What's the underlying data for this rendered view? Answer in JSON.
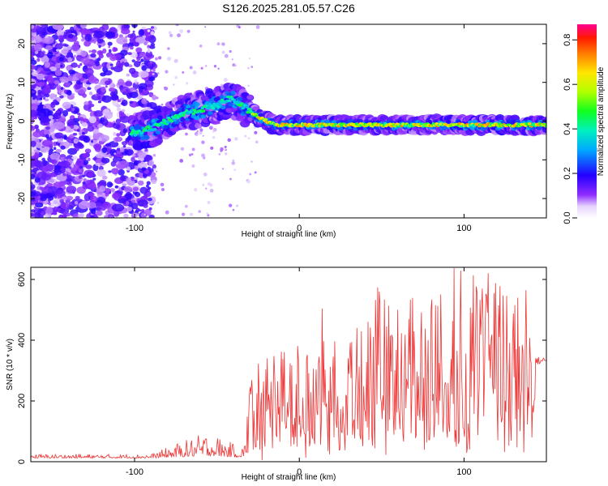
{
  "chart_data": [
    {
      "type": "heatmap",
      "title": "S126.2025.281.05.57.C26",
      "xlabel": "Height of straight line (km)",
      "ylabel": "Frequency (Hz)",
      "xlim": [
        -163,
        150
      ],
      "ylim": [
        -25,
        25
      ],
      "xticks": [
        -100,
        0,
        100
      ],
      "xtick_labels": [
        "-100",
        "0",
        "100"
      ],
      "yticks": [
        -20,
        -10,
        0,
        10,
        20
      ],
      "ytick_labels": [
        "-20",
        "-10",
        "0",
        "10",
        "20"
      ],
      "colorbar": {
        "label": "Normalized spectral amplitude",
        "range": [
          0.0,
          0.87
        ],
        "ticks": [
          0.0,
          0.2,
          0.4,
          0.6,
          0.8
        ],
        "tick_labels": [
          "0.0",
          "0.2",
          "0.4",
          "0.6",
          "0.8"
        ],
        "colormap": "rainbow"
      },
      "ridge": {
        "description_points": [
          {
            "x": -100,
            "y": -3
          },
          {
            "x": -90,
            "y": -2
          },
          {
            "x": -80,
            "y": 0
          },
          {
            "x": -70,
            "y": 2
          },
          {
            "x": -60,
            "y": 3
          },
          {
            "x": -50,
            "y": 4
          },
          {
            "x": -42,
            "y": 6
          },
          {
            "x": -35,
            "y": 4
          },
          {
            "x": -25,
            "y": 1
          },
          {
            "x": -15,
            "y": -1
          },
          {
            "x": 0,
            "y": -1
          },
          {
            "x": 50,
            "y": -1
          },
          {
            "x": 100,
            "y": -1
          },
          {
            "x": 150,
            "y": -1
          }
        ]
      }
    },
    {
      "type": "line",
      "xlabel": "Height of straight line (km)",
      "ylabel": "SNR (10 * v/v)",
      "xlim": [
        -163,
        150
      ],
      "ylim": [
        0,
        640
      ],
      "xticks": [
        -100,
        0,
        100
      ],
      "xtick_labels": [
        "-100",
        "0",
        "100"
      ],
      "yticks": [
        0,
        200,
        400,
        600
      ],
      "ytick_labels": [
        "0",
        "200",
        "400",
        "600"
      ],
      "color": "#ee3333",
      "series": [
        {
          "name": "SNR",
          "envelope": [
            {
              "x": -163,
              "base": 12,
              "peak": 25
            },
            {
              "x": -90,
              "base": 12,
              "peak": 25
            },
            {
              "x": -75,
              "base": 15,
              "peak": 60
            },
            {
              "x": -55,
              "base": 20,
              "peak": 100
            },
            {
              "x": -40,
              "base": 15,
              "peak": 60
            },
            {
              "x": -33,
              "base": 15,
              "peak": 60
            },
            {
              "x": -30,
              "base": 40,
              "peak": 310
            },
            {
              "x": -10,
              "base": 80,
              "peak": 360
            },
            {
              "x": 20,
              "base": 100,
              "peak": 450
            },
            {
              "x": 50,
              "base": 100,
              "peak": 520
            },
            {
              "x": 80,
              "base": 80,
              "peak": 560
            },
            {
              "x": 110,
              "base": 80,
              "peak": 640
            },
            {
              "x": 140,
              "base": 60,
              "peak": 600
            },
            {
              "x": 143,
              "base": 320,
              "peak": 345
            },
            {
              "x": 150,
              "base": 320,
              "peak": 345
            }
          ]
        }
      ]
    }
  ]
}
